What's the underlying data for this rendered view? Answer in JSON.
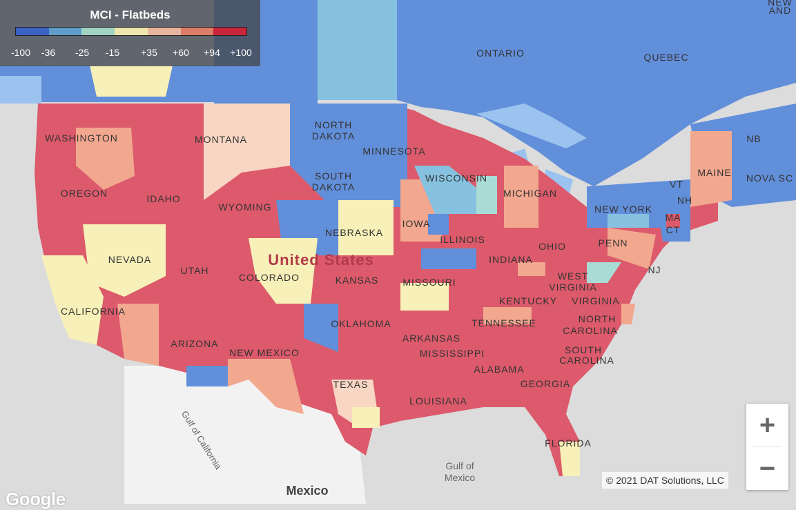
{
  "legend": {
    "title": "MCI - Flatbeds",
    "colors": [
      "#3b62c4",
      "#5e9cc9",
      "#a2d3c4",
      "#efe6ad",
      "#eab5a0",
      "#dd7d67",
      "#c9253c"
    ],
    "ticks": [
      "-100",
      "-36",
      "-25",
      "-15",
      "+35",
      "+60",
      "+94",
      "+100"
    ]
  },
  "colors": {
    "hot": "#dc5a6b",
    "warm": "#f2a78f",
    "light_warm": "#f8d6c3",
    "neutral": "#f7f0b8",
    "light_cool": "#a9dcd6",
    "cool": "#86c1e0",
    "cold": "#628fda",
    "water": "#9cc3ef",
    "land": "#dcdcdc",
    "mexico": "#f2f2f2"
  },
  "labels": {
    "canada": [
      "ONTARIO",
      "QUEBEC",
      "NEW",
      "AND",
      "NB",
      "NOVA SC"
    ],
    "states": [
      "WASHINGTON",
      "MONTANA",
      "NORTH",
      "DAKOTA",
      "MINNESOTA",
      "OREGON",
      "IDAHO",
      "SOUTH",
      "DAKOTA",
      "WISCONSIN",
      "MICHIGAN",
      "WYOMING",
      "NEBRASKA",
      "IOWA",
      "ILLINOIS",
      "INDIANA",
      "OHIO",
      "PENN",
      "NEW YORK",
      "VT",
      "NH",
      "MAINE",
      "MA",
      "CT",
      "NJ",
      "NEVADA",
      "UTAH",
      "COLORADO",
      "KANSAS",
      "MISSOURI",
      "KENTUCKY",
      "WEST",
      "VIRGINIA",
      "VIRGINIA",
      "CALIFORNIA",
      "ARIZONA",
      "NEW MEXICO",
      "OKLAHOMA",
      "ARKANSAS",
      "TENNESSEE",
      "NORTH",
      "CAROLINA",
      "SOUTH",
      "CAROLINA",
      "MISSISSIPPI",
      "ALABAMA",
      "GEORGIA",
      "TEXAS",
      "LOUISIANA",
      "FLORIDA"
    ],
    "country": "United States",
    "mexico": "Mexico",
    "gulf_mexico": [
      "Gulf of",
      "Mexico"
    ],
    "gulf_california": "Gulf of California"
  },
  "zoom": {
    "in": "+",
    "out": "−"
  },
  "copyright": "© 2021 DAT Solutions, LLC",
  "google": "Google"
}
